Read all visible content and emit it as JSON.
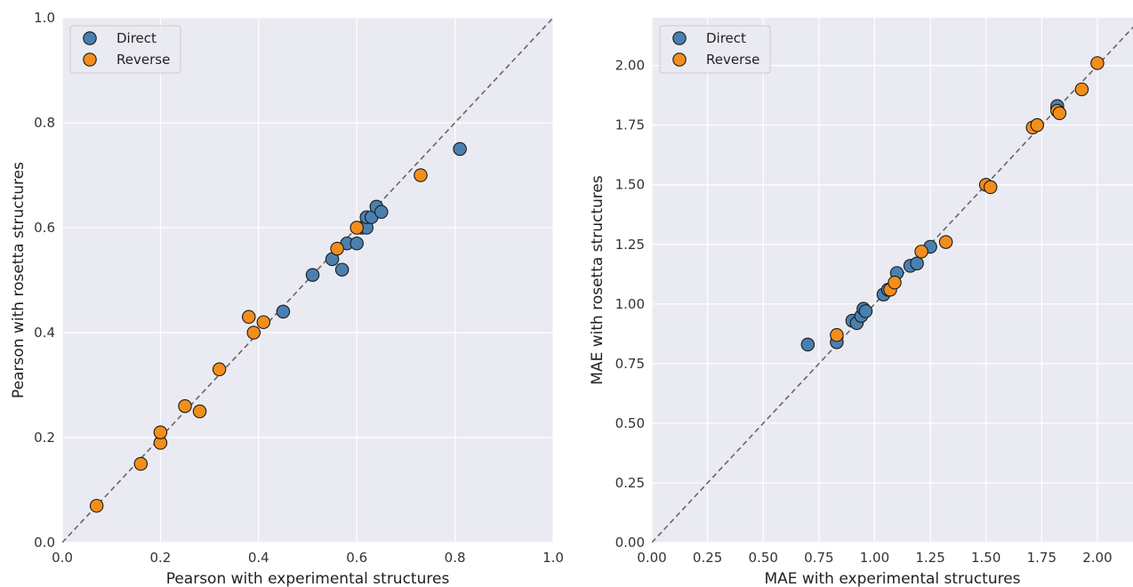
{
  "colors": {
    "direct": "#4a80b0",
    "reverse": "#f28e1c",
    "plot_bg": "#eaeaf2",
    "grid": "#ffffff",
    "diagonal": "#666666"
  },
  "chart_data": [
    {
      "type": "scatter",
      "title": "",
      "xlabel": "Pearson with experimental structures",
      "ylabel": "Pearson with rosetta structures",
      "xlim": [
        0.0,
        1.0
      ],
      "ylim": [
        0.0,
        1.0
      ],
      "xticks": [
        "0.0",
        "0.2",
        "0.4",
        "0.6",
        "0.8",
        "1.0"
      ],
      "yticks": [
        "0.0",
        "0.2",
        "0.4",
        "0.6",
        "0.8",
        "1.0"
      ],
      "grid": true,
      "diagonal": true,
      "legend_placement": "top-left",
      "series": [
        {
          "name": "Direct",
          "x": [
            0.81,
            0.45,
            0.51,
            0.55,
            0.57,
            0.58,
            0.6,
            0.61,
            0.62,
            0.62,
            0.63,
            0.64,
            0.65
          ],
          "y": [
            0.75,
            0.44,
            0.51,
            0.54,
            0.52,
            0.57,
            0.57,
            0.6,
            0.6,
            0.62,
            0.62,
            0.64,
            0.63
          ]
        },
        {
          "name": "Reverse",
          "x": [
            0.07,
            0.16,
            0.2,
            0.2,
            0.25,
            0.28,
            0.32,
            0.38,
            0.39,
            0.41,
            0.56,
            0.6,
            0.73
          ],
          "y": [
            0.07,
            0.15,
            0.19,
            0.21,
            0.26,
            0.25,
            0.33,
            0.43,
            0.4,
            0.42,
            0.56,
            0.6,
            0.7
          ]
        }
      ]
    },
    {
      "type": "scatter",
      "title": "",
      "xlabel": "MAE with experimental structures",
      "ylabel": "MAE with rosetta structures",
      "xlim": [
        0.0,
        2.16
      ],
      "ylim": [
        0.0,
        2.2
      ],
      "xticks": [
        "0.00",
        "0.25",
        "0.50",
        "0.75",
        "1.00",
        "1.25",
        "1.50",
        "1.75",
        "2.00"
      ],
      "yticks": [
        "0.00",
        "0.25",
        "0.50",
        "0.75",
        "1.00",
        "1.25",
        "1.50",
        "1.75",
        "2.00"
      ],
      "grid": true,
      "diagonal": true,
      "legend_placement": "top-left",
      "series": [
        {
          "name": "Direct",
          "x": [
            0.7,
            0.83,
            0.9,
            0.92,
            0.94,
            0.95,
            0.96,
            1.04,
            1.06,
            1.1,
            1.16,
            1.19,
            1.25,
            1.82,
            1.82
          ],
          "y": [
            0.83,
            0.84,
            0.93,
            0.92,
            0.95,
            0.98,
            0.97,
            1.04,
            1.06,
            1.13,
            1.16,
            1.17,
            1.24,
            1.82,
            1.83
          ]
        },
        {
          "name": "Reverse",
          "x": [
            0.83,
            1.07,
            1.09,
            1.21,
            1.32,
            1.5,
            1.52,
            1.71,
            1.73,
            1.82,
            1.83,
            1.93,
            2.0
          ],
          "y": [
            0.87,
            1.06,
            1.09,
            1.22,
            1.26,
            1.5,
            1.49,
            1.74,
            1.75,
            1.81,
            1.8,
            1.9,
            2.01
          ]
        }
      ]
    }
  ]
}
